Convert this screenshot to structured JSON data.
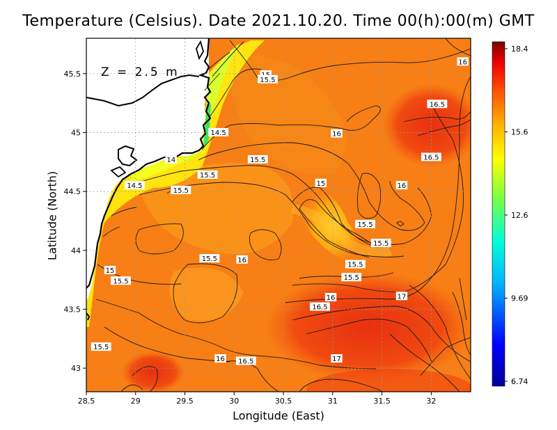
{
  "title": "Temperature (Celsius). Date 2021.10.20. Time 00(h):00(m) GMT",
  "depth_label": "Z = 2.5 m",
  "axes": {
    "xlabel": "Longitude (East)",
    "ylabel": "Latitude (North)",
    "x_ticks": [
      "28.5",
      "29",
      "29.5",
      "30",
      "30.5",
      "31",
      "31.5",
      "32"
    ],
    "y_ticks": [
      "43",
      "43.5",
      "44",
      "44.5",
      "45",
      "45.5"
    ],
    "xlim": [
      28.5,
      32.4
    ],
    "ylim": [
      42.8,
      45.8
    ]
  },
  "colorbar": {
    "ticks": [
      "18.4",
      "15.6",
      "12.6",
      "9.69",
      "6.74"
    ],
    "min": 6.74,
    "max": 18.4
  },
  "contour_labels": [
    {
      "text": "16",
      "lon": 32.32,
      "lat": 45.6
    },
    {
      "text": "15",
      "lon": 30.32,
      "lat": 45.49
    },
    {
      "text": "15.5",
      "lon": 30.34,
      "lat": 45.45
    },
    {
      "text": "16",
      "lon": 31.04,
      "lat": 44.99
    },
    {
      "text": "16.5",
      "lon": 32.06,
      "lat": 45.24
    },
    {
      "text": "14.5",
      "lon": 29.84,
      "lat": 45.0
    },
    {
      "text": "16.5",
      "lon": 32.0,
      "lat": 44.79
    },
    {
      "text": "14",
      "lon": 29.36,
      "lat": 44.77
    },
    {
      "text": "15.5",
      "lon": 30.24,
      "lat": 44.77
    },
    {
      "text": "15.5",
      "lon": 29.73,
      "lat": 44.64
    },
    {
      "text": "15",
      "lon": 30.88,
      "lat": 44.57
    },
    {
      "text": "16",
      "lon": 31.7,
      "lat": 44.55
    },
    {
      "text": "14.5",
      "lon": 28.99,
      "lat": 44.55
    },
    {
      "text": "15.5",
      "lon": 29.46,
      "lat": 44.51
    },
    {
      "text": "15.5",
      "lon": 31.33,
      "lat": 44.22
    },
    {
      "text": "15.5",
      "lon": 31.49,
      "lat": 44.06
    },
    {
      "text": "15.5",
      "lon": 29.75,
      "lat": 43.93
    },
    {
      "text": "16",
      "lon": 30.08,
      "lat": 43.92
    },
    {
      "text": "15.5",
      "lon": 31.23,
      "lat": 43.88
    },
    {
      "text": "15",
      "lon": 28.74,
      "lat": 43.83
    },
    {
      "text": "15.5",
      "lon": 31.19,
      "lat": 43.77
    },
    {
      "text": "15.5",
      "lon": 28.85,
      "lat": 43.74
    },
    {
      "text": "16",
      "lon": 30.98,
      "lat": 43.6
    },
    {
      "text": "17",
      "lon": 31.7,
      "lat": 43.61
    },
    {
      "text": "16.5",
      "lon": 30.87,
      "lat": 43.52
    },
    {
      "text": "15.5",
      "lon": 28.65,
      "lat": 43.18
    },
    {
      "text": "16",
      "lon": 29.86,
      "lat": 43.08
    },
    {
      "text": "16.5",
      "lon": 30.12,
      "lat": 43.06
    },
    {
      "text": "17",
      "lon": 31.04,
      "lat": 43.08
    }
  ]
}
